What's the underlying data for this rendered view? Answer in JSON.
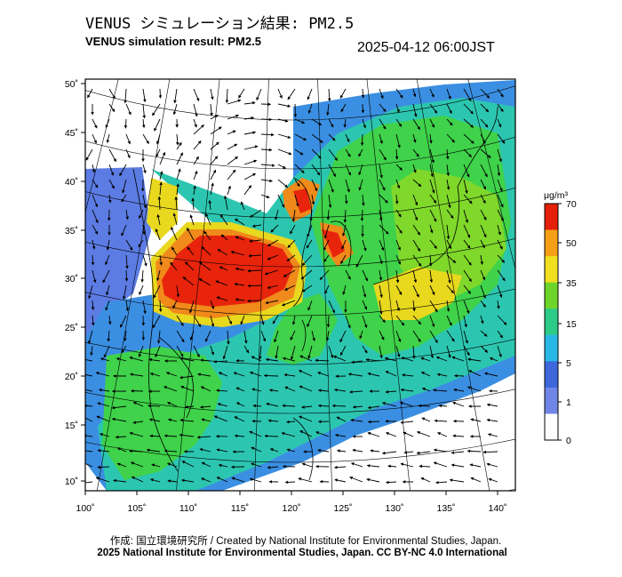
{
  "header": {
    "title_jp": "VENUS シミュレーション結果: PM2.5",
    "title_en": "VENUS simulation result: PM2.5",
    "timestamp": "2025-04-12 06:00JST"
  },
  "map": {
    "lon_ticks": [
      "100˚",
      "105˚",
      "110˚",
      "115˚",
      "120˚",
      "125˚",
      "130˚",
      "135˚",
      "140˚"
    ],
    "lat_ticks": [
      "50˚",
      "45˚",
      "40˚",
      "35˚",
      "30˚",
      "25˚",
      "20˚",
      "15˚",
      "10˚"
    ],
    "lon_range": [
      100,
      142
    ],
    "lat_range": [
      9,
      51
    ],
    "colors": {
      "very_low": "#dcdcf5",
      "low": "#4f6fe0",
      "mid_low": "#2bb8e0",
      "mid": "#2ed08a",
      "mid_high": "#6bd82a",
      "high": "#e3d21c",
      "very_high": "#f07a1c",
      "extreme": "#e8240c"
    }
  },
  "colorbar": {
    "unit": "μg/m³",
    "ticks": [
      "70",
      "50",
      "35",
      "15",
      "5",
      "1",
      "0"
    ],
    "colors": [
      "#e4200a",
      "#f5a014",
      "#f0e020",
      "#6ed42a",
      "#2ccc88",
      "#28b8e6",
      "#3d68dc",
      "#6f86e6",
      "#ffffff"
    ]
  },
  "footer": {
    "credit_line": "作成: 国立環境研究所 / Created by National Institute for Environmental Studies, Japan.",
    "copyright_line": "2025 National Institute for Environmental Studies, Japan. CC BY-NC 4.0 International"
  }
}
